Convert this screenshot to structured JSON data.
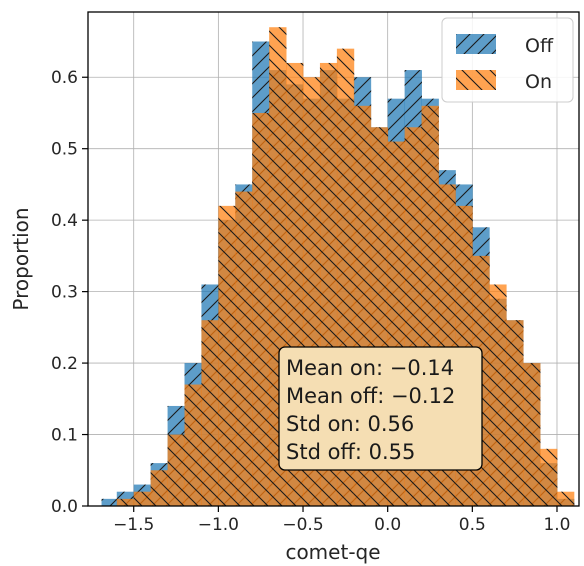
{
  "chart_data": {
    "type": "histogram",
    "xlabel": "comet-qe",
    "ylabel": "Proportion",
    "xlim": [
      -1.77,
      1.13
    ],
    "ylim": [
      0.0,
      0.6913
    ],
    "xticks": [
      -1.5,
      -1.0,
      -0.5,
      0.0,
      0.5,
      1.0
    ],
    "xtick_labels": [
      "−1.5",
      "−1.0",
      "−0.5",
      "0.0",
      "0.5",
      "1.0"
    ],
    "yticks": [
      0.0,
      0.1,
      0.2,
      0.3,
      0.4,
      0.5,
      0.6
    ],
    "ytick_labels": [
      "0.0",
      "0.1",
      "0.2",
      "0.3",
      "0.4",
      "0.5",
      "0.6"
    ],
    "grid": true,
    "legend_position": "top-right",
    "series": [
      {
        "name": "Off",
        "color": "#1f77b4",
        "hatch": "//",
        "bin_edges": [
          -1.69,
          -1.6,
          -1.5,
          -1.4,
          -1.3,
          -1.2,
          -1.1,
          -1.0,
          -0.9,
          -0.8,
          -0.7,
          -0.6,
          -0.5,
          -0.4,
          -0.3,
          -0.2,
          -0.1,
          0.0,
          0.1,
          0.2,
          0.3,
          0.4,
          0.5,
          0.6,
          0.7,
          0.8,
          0.9,
          1.0,
          1.1
        ],
        "values": [
          0.01,
          0.02,
          0.03,
          0.06,
          0.14,
          0.2,
          0.31,
          0.4,
          0.45,
          0.65,
          0.61,
          0.59,
          0.57,
          0.61,
          0.57,
          0.6,
          0.53,
          0.57,
          0.61,
          0.57,
          0.47,
          0.45,
          0.39,
          0.29,
          0.26,
          0.2,
          0.06,
          0.01
        ]
      },
      {
        "name": "On",
        "color": "#ff7f0e",
        "hatch": "\\\\",
        "bin_edges": [
          -1.69,
          -1.6,
          -1.5,
          -1.4,
          -1.3,
          -1.2,
          -1.1,
          -1.0,
          -0.9,
          -0.8,
          -0.7,
          -0.6,
          -0.5,
          -0.4,
          -0.3,
          -0.2,
          -0.1,
          0.0,
          0.1,
          0.2,
          0.3,
          0.4,
          0.5,
          0.6,
          0.7,
          0.8,
          0.9,
          1.0,
          1.1
        ],
        "values": [
          0.0,
          0.01,
          0.02,
          0.05,
          0.1,
          0.17,
          0.26,
          0.42,
          0.44,
          0.55,
          0.67,
          0.62,
          0.6,
          0.62,
          0.64,
          0.56,
          0.53,
          0.51,
          0.53,
          0.56,
          0.45,
          0.42,
          0.35,
          0.31,
          0.26,
          0.2,
          0.08,
          0.02
        ]
      }
    ],
    "annotation": {
      "lines": [
        "Mean on: −0.14",
        "Mean off: −0.12",
        "Std on: 0.56",
        "Std off: 0.55"
      ],
      "facecolor": "#f5deb3"
    }
  }
}
